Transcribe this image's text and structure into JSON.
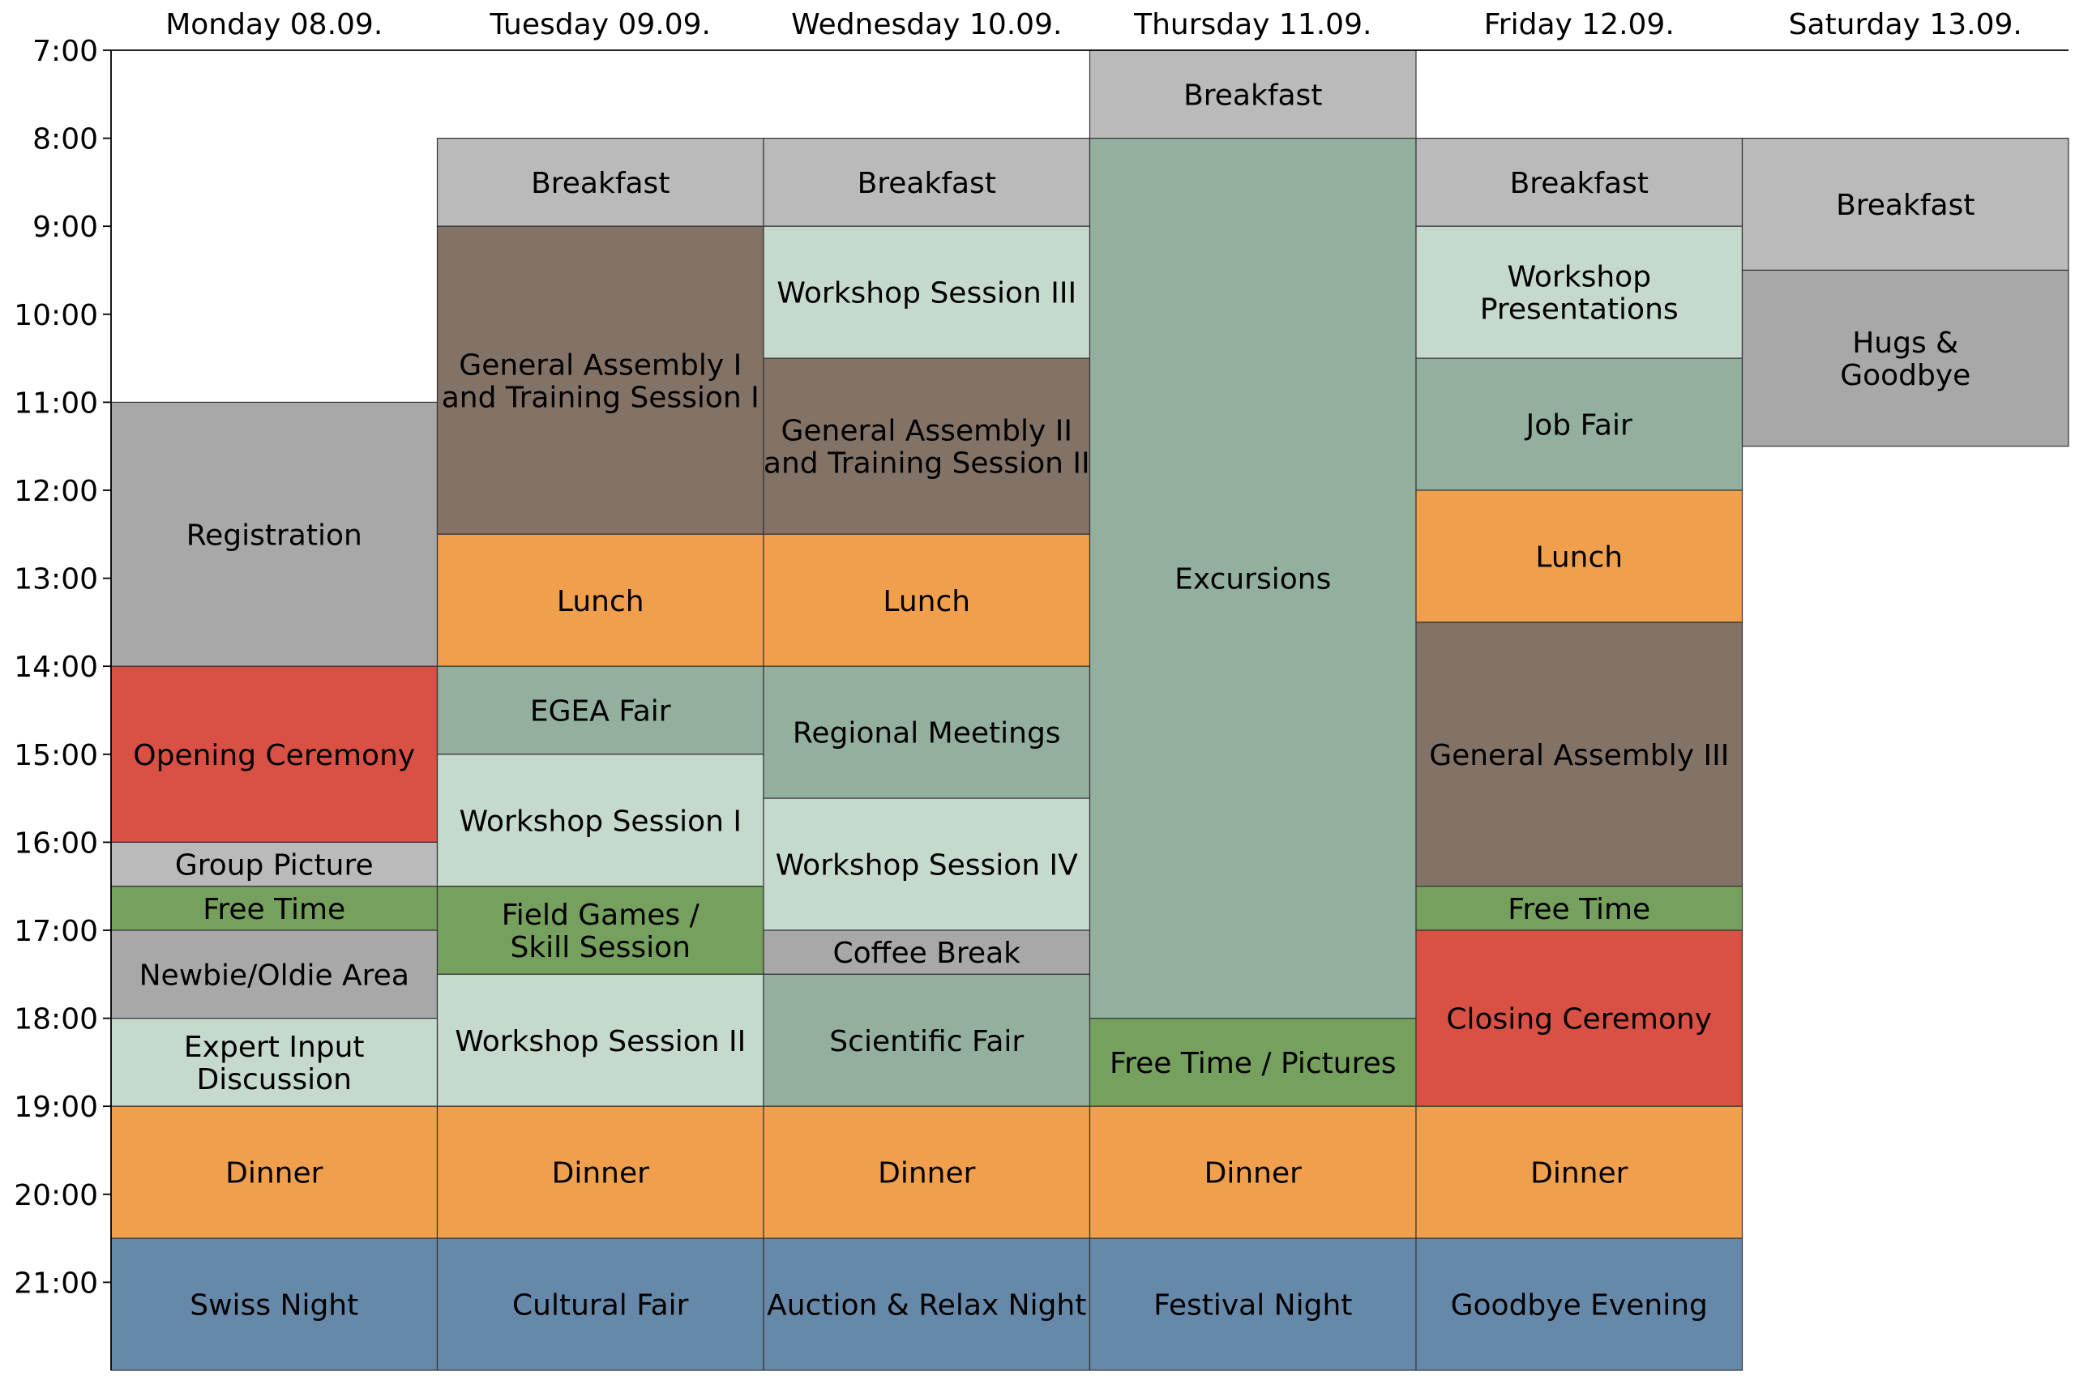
{
  "chart_data": {
    "type": "table",
    "title": "",
    "xlabel": "",
    "ylabel": "",
    "y_range": [
      7,
      22
    ],
    "y_ticks": [
      "7:00",
      "8:00",
      "9:00",
      "10:00",
      "11:00",
      "12:00",
      "13:00",
      "14:00",
      "15:00",
      "16:00",
      "17:00",
      "18:00",
      "19:00",
      "20:00",
      "21:00"
    ],
    "grid": false,
    "legend": "none",
    "colors": {
      "meal": "#f0a04c",
      "light_grey": "#bababa",
      "grey": "#a8a8a8",
      "brown": "#837266",
      "sage": "#93b09f",
      "light_sage": "#c5d9cd",
      "green": "#76a05e",
      "red": "#d95144",
      "blue": "#6789a9"
    },
    "days": [
      {
        "label": "Monday 08.09.",
        "events": [
          {
            "start": 11,
            "end": 14,
            "lines": [
              "Registration"
            ],
            "color": "grey"
          },
          {
            "start": 14,
            "end": 16,
            "lines": [
              "Opening Ceremony"
            ],
            "color": "red"
          },
          {
            "start": 16,
            "end": 16.5,
            "lines": [
              "Group Picture"
            ],
            "color": "light_grey"
          },
          {
            "start": 16.5,
            "end": 17,
            "lines": [
              "Free Time"
            ],
            "color": "green"
          },
          {
            "start": 17,
            "end": 18,
            "lines": [
              "Newbie/Oldie Area"
            ],
            "color": "grey"
          },
          {
            "start": 18,
            "end": 19,
            "lines": [
              "Expert Input",
              "Discussion"
            ],
            "color": "light_sage"
          },
          {
            "start": 19,
            "end": 20.5,
            "lines": [
              "Dinner"
            ],
            "color": "meal"
          },
          {
            "start": 20.5,
            "end": 22,
            "lines": [
              "Swiss Night"
            ],
            "color": "blue"
          }
        ]
      },
      {
        "label": "Tuesday 09.09.",
        "events": [
          {
            "start": 8,
            "end": 9,
            "lines": [
              "Breakfast"
            ],
            "color": "light_grey"
          },
          {
            "start": 9,
            "end": 12.5,
            "lines": [
              "General Assembly I",
              "and Training Session I"
            ],
            "color": "brown"
          },
          {
            "start": 12.5,
            "end": 14,
            "lines": [
              "Lunch"
            ],
            "color": "meal"
          },
          {
            "start": 14,
            "end": 15,
            "lines": [
              "EGEA Fair"
            ],
            "color": "sage"
          },
          {
            "start": 15,
            "end": 16.5,
            "lines": [
              "Workshop Session I"
            ],
            "color": "light_sage"
          },
          {
            "start": 16.5,
            "end": 17.5,
            "lines": [
              "Field Games /",
              "Skill Session"
            ],
            "color": "green"
          },
          {
            "start": 17.5,
            "end": 19,
            "lines": [
              "Workshop Session II"
            ],
            "color": "light_sage"
          },
          {
            "start": 19,
            "end": 20.5,
            "lines": [
              "Dinner"
            ],
            "color": "meal"
          },
          {
            "start": 20.5,
            "end": 22,
            "lines": [
              "Cultural Fair"
            ],
            "color": "blue"
          }
        ]
      },
      {
        "label": "Wednesday 10.09.",
        "events": [
          {
            "start": 8,
            "end": 9,
            "lines": [
              "Breakfast"
            ],
            "color": "light_grey"
          },
          {
            "start": 9,
            "end": 10.5,
            "lines": [
              "Workshop Session III"
            ],
            "color": "light_sage"
          },
          {
            "start": 10.5,
            "end": 12.5,
            "lines": [
              "General Assembly II",
              "and Training Session II"
            ],
            "color": "brown"
          },
          {
            "start": 12.5,
            "end": 14,
            "lines": [
              "Lunch"
            ],
            "color": "meal"
          },
          {
            "start": 14,
            "end": 15.5,
            "lines": [
              "Regional Meetings"
            ],
            "color": "sage"
          },
          {
            "start": 15.5,
            "end": 17,
            "lines": [
              "Workshop Session IV"
            ],
            "color": "light_sage"
          },
          {
            "start": 17,
            "end": 17.5,
            "lines": [
              "Coffee Break"
            ],
            "color": "grey"
          },
          {
            "start": 17.5,
            "end": 19,
            "lines": [
              "Scientific Fair"
            ],
            "color": "sage"
          },
          {
            "start": 19,
            "end": 20.5,
            "lines": [
              "Dinner"
            ],
            "color": "meal"
          },
          {
            "start": 20.5,
            "end": 22,
            "lines": [
              "Auction & Relax Night"
            ],
            "color": "blue"
          }
        ]
      },
      {
        "label": "Thursday 11.09.",
        "events": [
          {
            "start": 7,
            "end": 8,
            "lines": [
              "Breakfast"
            ],
            "color": "light_grey"
          },
          {
            "start": 8,
            "end": 18,
            "lines": [
              "Excursions"
            ],
            "color": "sage"
          },
          {
            "start": 18,
            "end": 19,
            "lines": [
              "Free Time / Pictures"
            ],
            "color": "green"
          },
          {
            "start": 19,
            "end": 20.5,
            "lines": [
              "Dinner"
            ],
            "color": "meal"
          },
          {
            "start": 20.5,
            "end": 22,
            "lines": [
              "Festival Night"
            ],
            "color": "blue"
          }
        ]
      },
      {
        "label": "Friday 12.09.",
        "events": [
          {
            "start": 8,
            "end": 9,
            "lines": [
              "Breakfast"
            ],
            "color": "light_grey"
          },
          {
            "start": 9,
            "end": 10.5,
            "lines": [
              "Workshop",
              "Presentations"
            ],
            "color": "light_sage"
          },
          {
            "start": 10.5,
            "end": 12,
            "lines": [
              "Job Fair"
            ],
            "color": "sage"
          },
          {
            "start": 12,
            "end": 13.5,
            "lines": [
              "Lunch"
            ],
            "color": "meal"
          },
          {
            "start": 13.5,
            "end": 16.5,
            "lines": [
              "General Assembly III"
            ],
            "color": "brown"
          },
          {
            "start": 16.5,
            "end": 17,
            "lines": [
              "Free Time"
            ],
            "color": "green"
          },
          {
            "start": 17,
            "end": 19,
            "lines": [
              "Closing Ceremony"
            ],
            "color": "red"
          },
          {
            "start": 19,
            "end": 20.5,
            "lines": [
              "Dinner"
            ],
            "color": "meal"
          },
          {
            "start": 20.5,
            "end": 22,
            "lines": [
              "Goodbye Evening"
            ],
            "color": "blue"
          }
        ]
      },
      {
        "label": "Saturday 13.09.",
        "events": [
          {
            "start": 8,
            "end": 9.5,
            "lines": [
              "Breakfast"
            ],
            "color": "light_grey"
          },
          {
            "start": 9.5,
            "end": 11.5,
            "lines": [
              "Hugs &",
              "Goodbye"
            ],
            "color": "grey"
          }
        ]
      }
    ]
  }
}
